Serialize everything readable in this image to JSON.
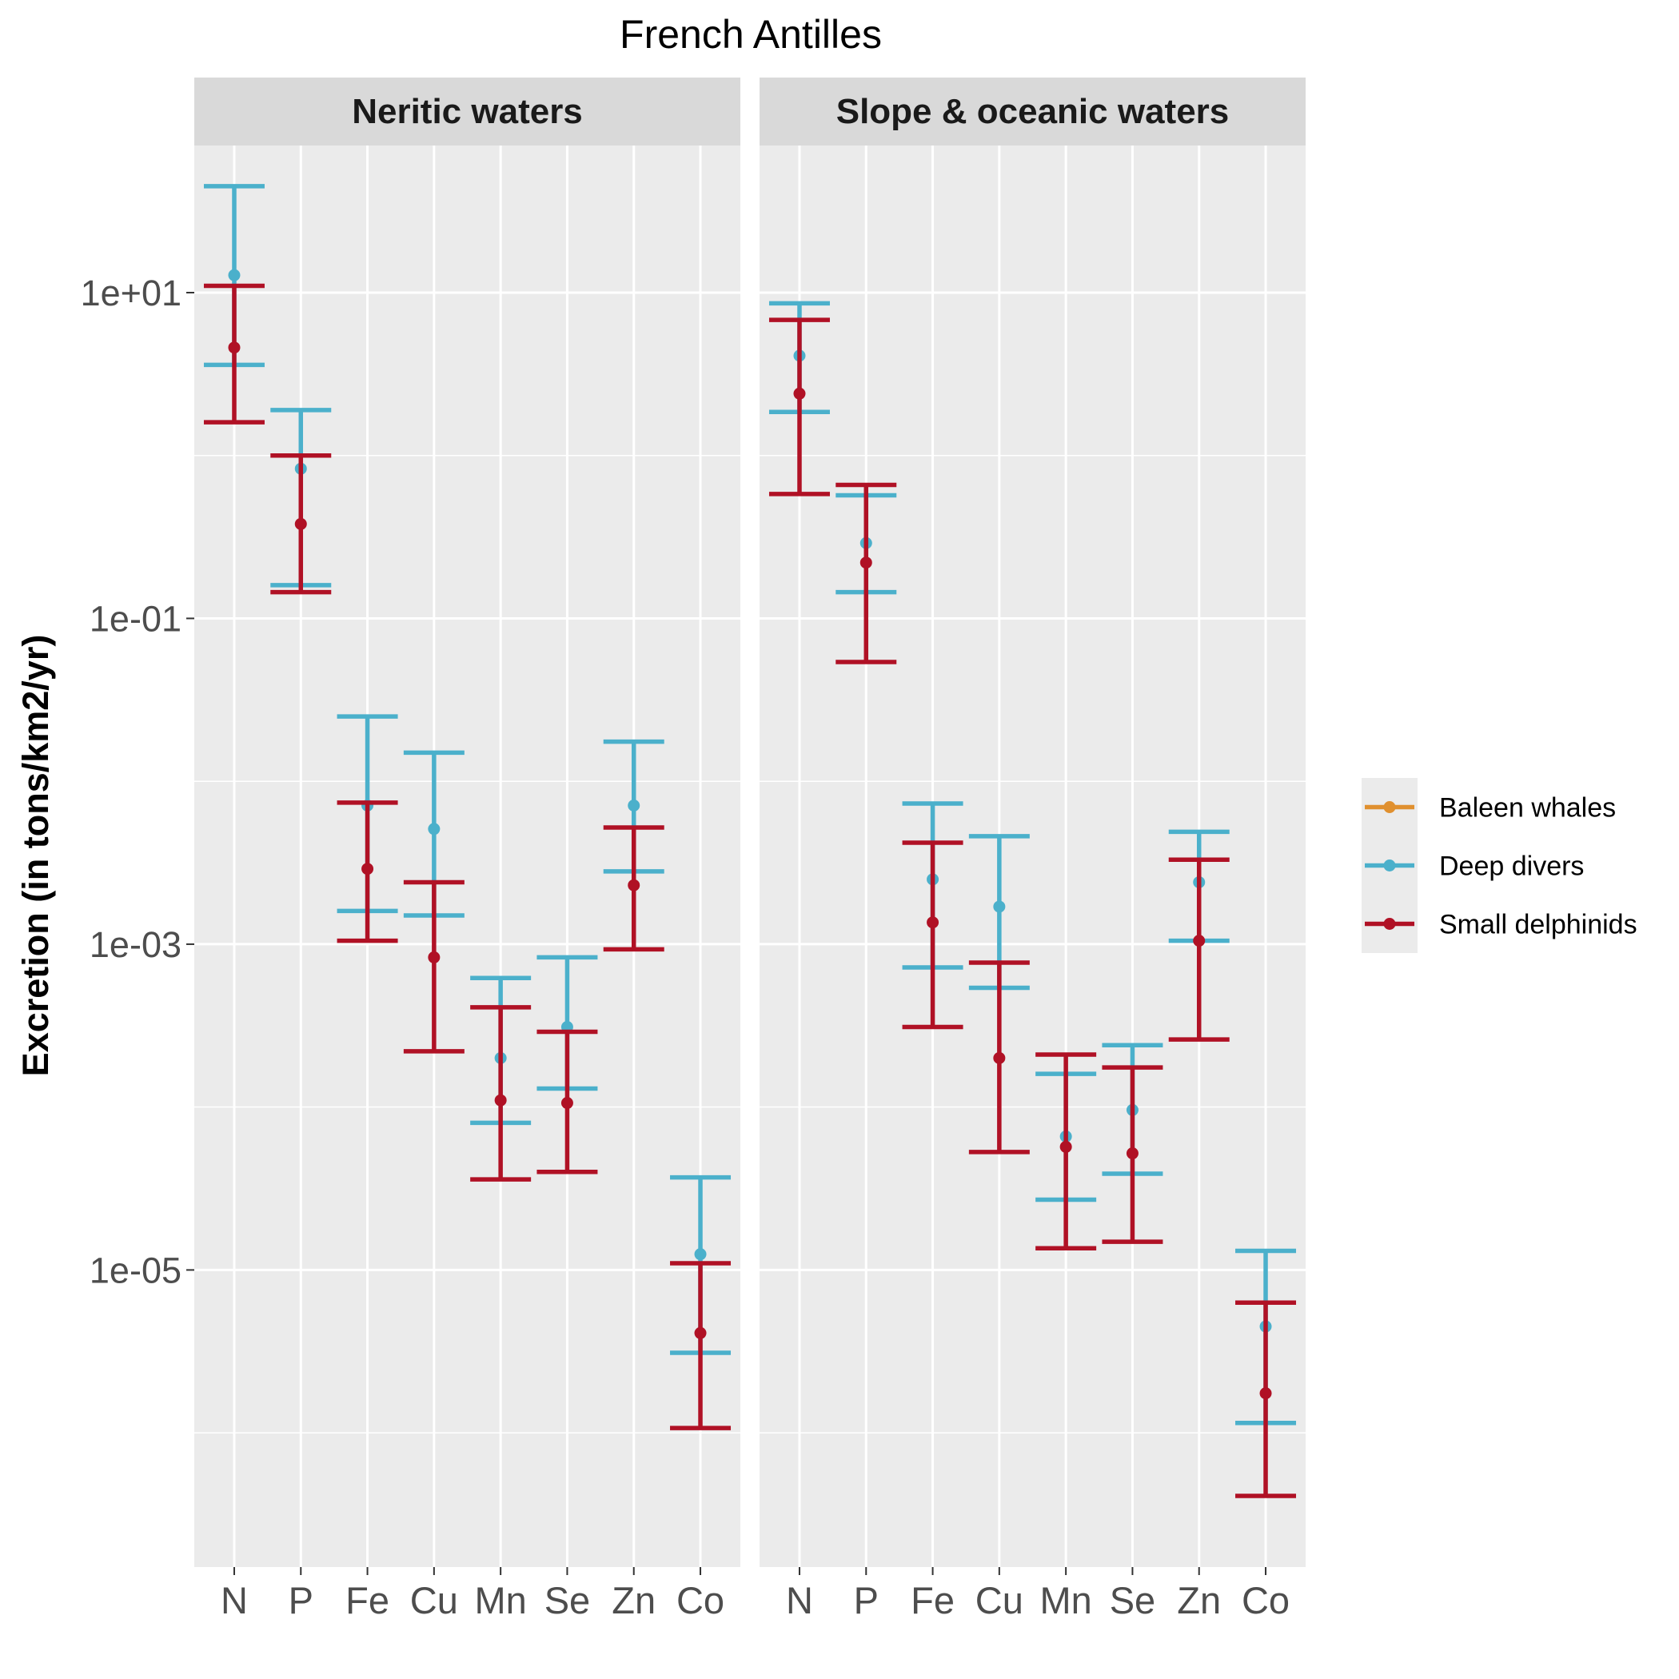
{
  "chart_data": {
    "type": "errorbar",
    "title": "French Antilles",
    "ylabel": "Excretion (in tons/km2/yr)",
    "xlabel": "",
    "y_scale": "log10",
    "ylim": [
      1.5e-07,
      80
    ],
    "y_ticks": [
      10,
      0.1,
      0.001,
      1e-05
    ],
    "y_tick_labels": [
      "1e+01",
      "1e-01",
      "1e-03",
      "1e-05"
    ],
    "categories": [
      "N",
      "P",
      "Fe",
      "Cu",
      "Mn",
      "Se",
      "Zn",
      "Co"
    ],
    "grid": true,
    "legend_position": "right",
    "legend": [
      {
        "name": "Baleen whales",
        "color": "#e0902f"
      },
      {
        "name": "Deep divers",
        "color": "#4bb0cb"
      },
      {
        "name": "Small delphinids",
        "color": "#b01125"
      }
    ],
    "panels": [
      {
        "label": "Neritic waters",
        "series": [
          {
            "name": "Deep divers",
            "color": "#4bb0cb",
            "points": [
              {
                "x": "N",
                "y": 12.8,
                "lo": 3.6,
                "hi": 45
              },
              {
                "x": "P",
                "y": 0.83,
                "lo": 0.16,
                "hi": 1.9
              },
              {
                "x": "Fe",
                "y": 0.0071,
                "lo": 0.0016,
                "hi": 0.025
              },
              {
                "x": "Cu",
                "y": 0.0051,
                "lo": 0.0015,
                "hi": 0.015
              },
              {
                "x": "Mn",
                "y": 0.0002,
                "lo": 8e-05,
                "hi": 0.00062
              },
              {
                "x": "Se",
                "y": 0.00031,
                "lo": 0.00013,
                "hi": 0.00083
              },
              {
                "x": "Zn",
                "y": 0.0071,
                "lo": 0.0028,
                "hi": 0.0175
              },
              {
                "x": "Co",
                "y": 1.25e-05,
                "lo": 3.1e-06,
                "hi": 3.7e-05
              }
            ]
          },
          {
            "name": "Small delphinids",
            "color": "#b01125",
            "points": [
              {
                "x": "N",
                "y": 4.6,
                "lo": 1.6,
                "hi": 11
              },
              {
                "x": "P",
                "y": 0.38,
                "lo": 0.145,
                "hi": 1.0
              },
              {
                "x": "Fe",
                "y": 0.0029,
                "lo": 0.00105,
                "hi": 0.0074
              },
              {
                "x": "Cu",
                "y": 0.00083,
                "lo": 0.00022,
                "hi": 0.0024
              },
              {
                "x": "Mn",
                "y": 0.00011,
                "lo": 3.6e-05,
                "hi": 0.00041
              },
              {
                "x": "Se",
                "y": 0.000106,
                "lo": 4e-05,
                "hi": 0.00029
              },
              {
                "x": "Zn",
                "y": 0.0023,
                "lo": 0.00093,
                "hi": 0.0052
              },
              {
                "x": "Co",
                "y": 4.1e-06,
                "lo": 1.07e-06,
                "hi": 1.1e-05
              }
            ]
          }
        ]
      },
      {
        "label": "Slope & oceanic waters",
        "series": [
          {
            "name": "Deep divers",
            "color": "#4bb0cb",
            "points": [
              {
                "x": "N",
                "y": 4.1,
                "lo": 1.85,
                "hi": 8.6
              },
              {
                "x": "P",
                "y": 0.29,
                "lo": 0.145,
                "hi": 0.57
              },
              {
                "x": "Fe",
                "y": 0.0025,
                "lo": 0.00072,
                "hi": 0.0073
              },
              {
                "x": "Cu",
                "y": 0.0017,
                "lo": 0.00054,
                "hi": 0.0046
              },
              {
                "x": "Mn",
                "y": 6.6e-05,
                "lo": 2.7e-05,
                "hi": 0.00016
              },
              {
                "x": "Se",
                "y": 9.6e-05,
                "lo": 3.9e-05,
                "hi": 0.00024
              },
              {
                "x": "Zn",
                "y": 0.0024,
                "lo": 0.00105,
                "hi": 0.0049
              },
              {
                "x": "Co",
                "y": 4.5e-06,
                "lo": 1.15e-06,
                "hi": 1.31e-05
              }
            ]
          },
          {
            "name": "Small delphinids",
            "color": "#b01125",
            "points": [
              {
                "x": "N",
                "y": 2.4,
                "lo": 0.58,
                "hi": 6.8
              },
              {
                "x": "P",
                "y": 0.22,
                "lo": 0.054,
                "hi": 0.66
              },
              {
                "x": "Fe",
                "y": 0.00136,
                "lo": 0.00031,
                "hi": 0.0042
              },
              {
                "x": "Cu",
                "y": 0.0002,
                "lo": 5.3e-05,
                "hi": 0.00077
              },
              {
                "x": "Mn",
                "y": 5.7e-05,
                "lo": 1.36e-05,
                "hi": 0.00021
              },
              {
                "x": "Se",
                "y": 5.2e-05,
                "lo": 1.49e-05,
                "hi": 0.000175
              },
              {
                "x": "Zn",
                "y": 0.00105,
                "lo": 0.00026,
                "hi": 0.0033
              },
              {
                "x": "Co",
                "y": 1.75e-06,
                "lo": 4.1e-07,
                "hi": 6.3e-06
              }
            ]
          }
        ]
      }
    ]
  }
}
